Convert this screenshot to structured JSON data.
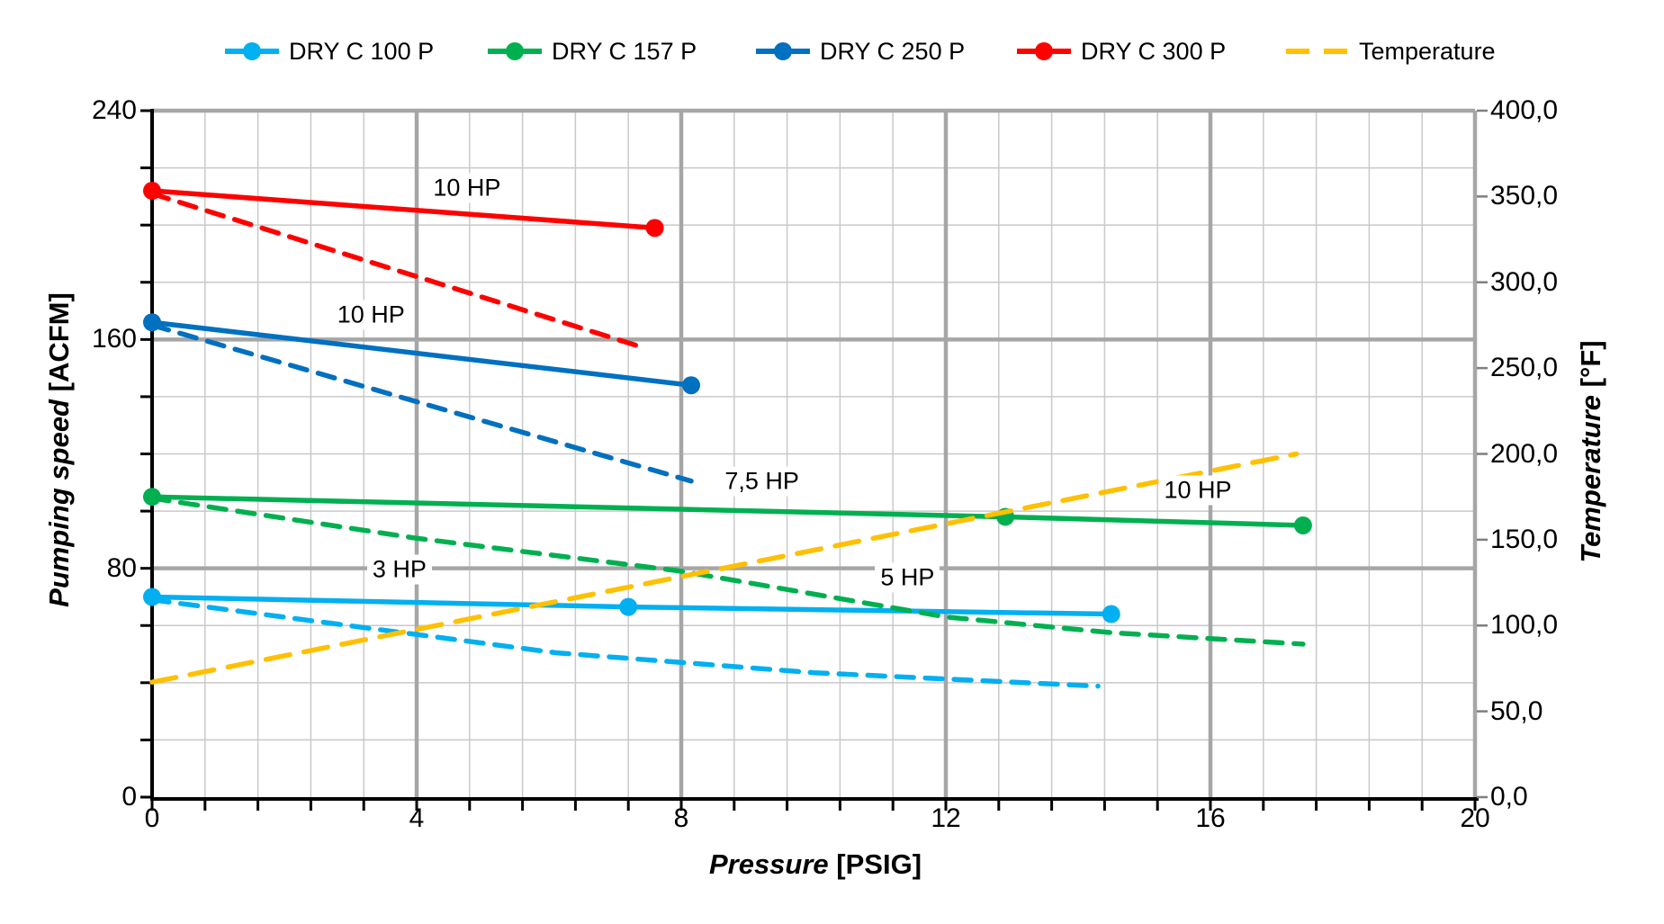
{
  "legend": {
    "items": [
      {
        "label": "DRY C 100 P",
        "color": "#00B0F0",
        "sample": "line-dot"
      },
      {
        "label": "DRY C 157 P",
        "color": "#00B050",
        "sample": "line-dot"
      },
      {
        "label": "DRY C 250 P",
        "color": "#0070C0",
        "sample": "line-dot"
      },
      {
        "label": "DRY C 300 P",
        "color": "#FF0000",
        "sample": "line-dot"
      },
      {
        "label": "Temperature",
        "color": "#FFC000",
        "sample": "dashes"
      }
    ]
  },
  "axes": {
    "x": {
      "title": "Pressure",
      "title_unit": "[PSIG]",
      "min": 0,
      "max": 20,
      "major": 4,
      "minor": 0.8,
      "ticks": [
        {
          "value": 0,
          "label": "0"
        },
        {
          "value": 4,
          "label": "4"
        },
        {
          "value": 8,
          "label": "8"
        },
        {
          "value": 12,
          "label": "12"
        },
        {
          "value": 16,
          "label": "16"
        },
        {
          "value": 20,
          "label": "20"
        }
      ]
    },
    "y_left": {
      "title": "Pumping speed",
      "title_unit": "[ACFM]",
      "min": 0,
      "max": 240,
      "major": 80,
      "minor": 20,
      "ticks": [
        {
          "value": 0,
          "label": "0"
        },
        {
          "value": 80,
          "label": "80"
        },
        {
          "value": 160,
          "label": "160"
        },
        {
          "value": 240,
          "label": "240"
        }
      ]
    },
    "y_right": {
      "title": "Temperature",
      "title_unit": "[°F]",
      "min": 0,
      "max": 400,
      "major": 50,
      "ticks": [
        {
          "value": 0,
          "label": "0,0"
        },
        {
          "value": 50,
          "label": "50,0"
        },
        {
          "value": 100,
          "label": "100,0"
        },
        {
          "value": 150,
          "label": "150,0"
        },
        {
          "value": 200,
          "label": "200,0"
        },
        {
          "value": 250,
          "label": "250,0"
        },
        {
          "value": 300,
          "label": "300,0"
        },
        {
          "value": 350,
          "label": "350,0"
        },
        {
          "value": 400,
          "label": "400,0"
        }
      ]
    }
  },
  "chart_data": {
    "type": "line",
    "title": "",
    "xlabel": "Pressure [PSIG]",
    "ylabel_left": "Pumping speed [ACFM]",
    "ylabel_right": "Temperature [°F]",
    "x_range": [
      0,
      20
    ],
    "y_left_range": [
      0,
      240
    ],
    "y_right_range": [
      0,
      400
    ],
    "grid": "on",
    "legend_position": "top",
    "series": [
      {
        "name": "DRY C 100 P",
        "color": "#00B0F0",
        "style": "solid",
        "axis": "left",
        "points": [
          [
            0,
            70
          ],
          [
            7.2,
            66.5
          ],
          [
            14.5,
            64
          ]
        ],
        "markers": [
          [
            0,
            70
          ],
          [
            7.2,
            66.5
          ],
          [
            14.5,
            64
          ]
        ]
      },
      {
        "name": "DRY C 100 P (dashed)",
        "color": "#00B0F0",
        "style": "dashed",
        "axis": "left",
        "points": [
          [
            0,
            69
          ],
          [
            2.8,
            60.5
          ],
          [
            6.1,
            50.5
          ],
          [
            10,
            43.5
          ],
          [
            14.3,
            38.8
          ]
        ],
        "markers": []
      },
      {
        "name": "DRY C 157 P",
        "color": "#00B050",
        "style": "solid",
        "axis": "left",
        "points": [
          [
            0,
            105
          ],
          [
            12.9,
            98
          ],
          [
            17.4,
            95
          ]
        ],
        "markers": [
          [
            0,
            105
          ],
          [
            12.9,
            98
          ],
          [
            17.4,
            95
          ]
        ]
      },
      {
        "name": "DRY C 157 P (dashed)",
        "color": "#00B050",
        "style": "dashed",
        "axis": "left",
        "points": [
          [
            0,
            104.5
          ],
          [
            4,
            90.5
          ],
          [
            8,
            79
          ],
          [
            12,
            63
          ],
          [
            14.5,
            57.5
          ],
          [
            17.4,
            53.5
          ]
        ],
        "markers": []
      },
      {
        "name": "DRY C 250 P",
        "color": "#0070C0",
        "style": "solid",
        "axis": "left",
        "points": [
          [
            0,
            166
          ],
          [
            8.15,
            144
          ]
        ],
        "markers": [
          [
            0,
            166
          ],
          [
            8.15,
            144
          ]
        ]
      },
      {
        "name": "DRY C 250 P (dashed)",
        "color": "#0070C0",
        "style": "dashed",
        "axis": "left",
        "points": [
          [
            0,
            165
          ],
          [
            8.15,
            110.5
          ]
        ],
        "markers": []
      },
      {
        "name": "DRY C 300 P",
        "color": "#FF0000",
        "style": "solid",
        "axis": "left",
        "points": [
          [
            0,
            212
          ],
          [
            7.6,
            199
          ]
        ],
        "markers": [
          [
            0,
            212
          ],
          [
            7.6,
            199
          ]
        ]
      },
      {
        "name": "DRY C 300 P (dashed)",
        "color": "#FF0000",
        "style": "dashed",
        "axis": "left",
        "points": [
          [
            0,
            211
          ],
          [
            7.45,
            157
          ]
        ],
        "markers": []
      },
      {
        "name": "Temperature",
        "color": "#FFC000",
        "style": "dashed-long",
        "axis": "right",
        "points": [
          [
            0,
            67
          ],
          [
            17.3,
            200
          ]
        ],
        "markers": []
      }
    ],
    "annotations": [
      {
        "text": "10 HP",
        "x": 4.76,
        "y": 213
      },
      {
        "text": "10 HP",
        "x": 3.31,
        "y": 168.5
      },
      {
        "text": "7,5 HP",
        "x": 9.22,
        "y": 110.3
      },
      {
        "text": "3 HP",
        "x": 3.74,
        "y": 79.5
      },
      {
        "text": "5 HP",
        "x": 11.42,
        "y": 76.8
      },
      {
        "text": "10 HP",
        "x": 15.81,
        "y": 107.2
      }
    ]
  },
  "style_colors": {
    "grid_minor": "#C9C9C9",
    "grid_major": "#A6A6A6",
    "axis_line": "#000000",
    "right_tick": "#7F7F7F",
    "background": "#FFFFFF"
  }
}
